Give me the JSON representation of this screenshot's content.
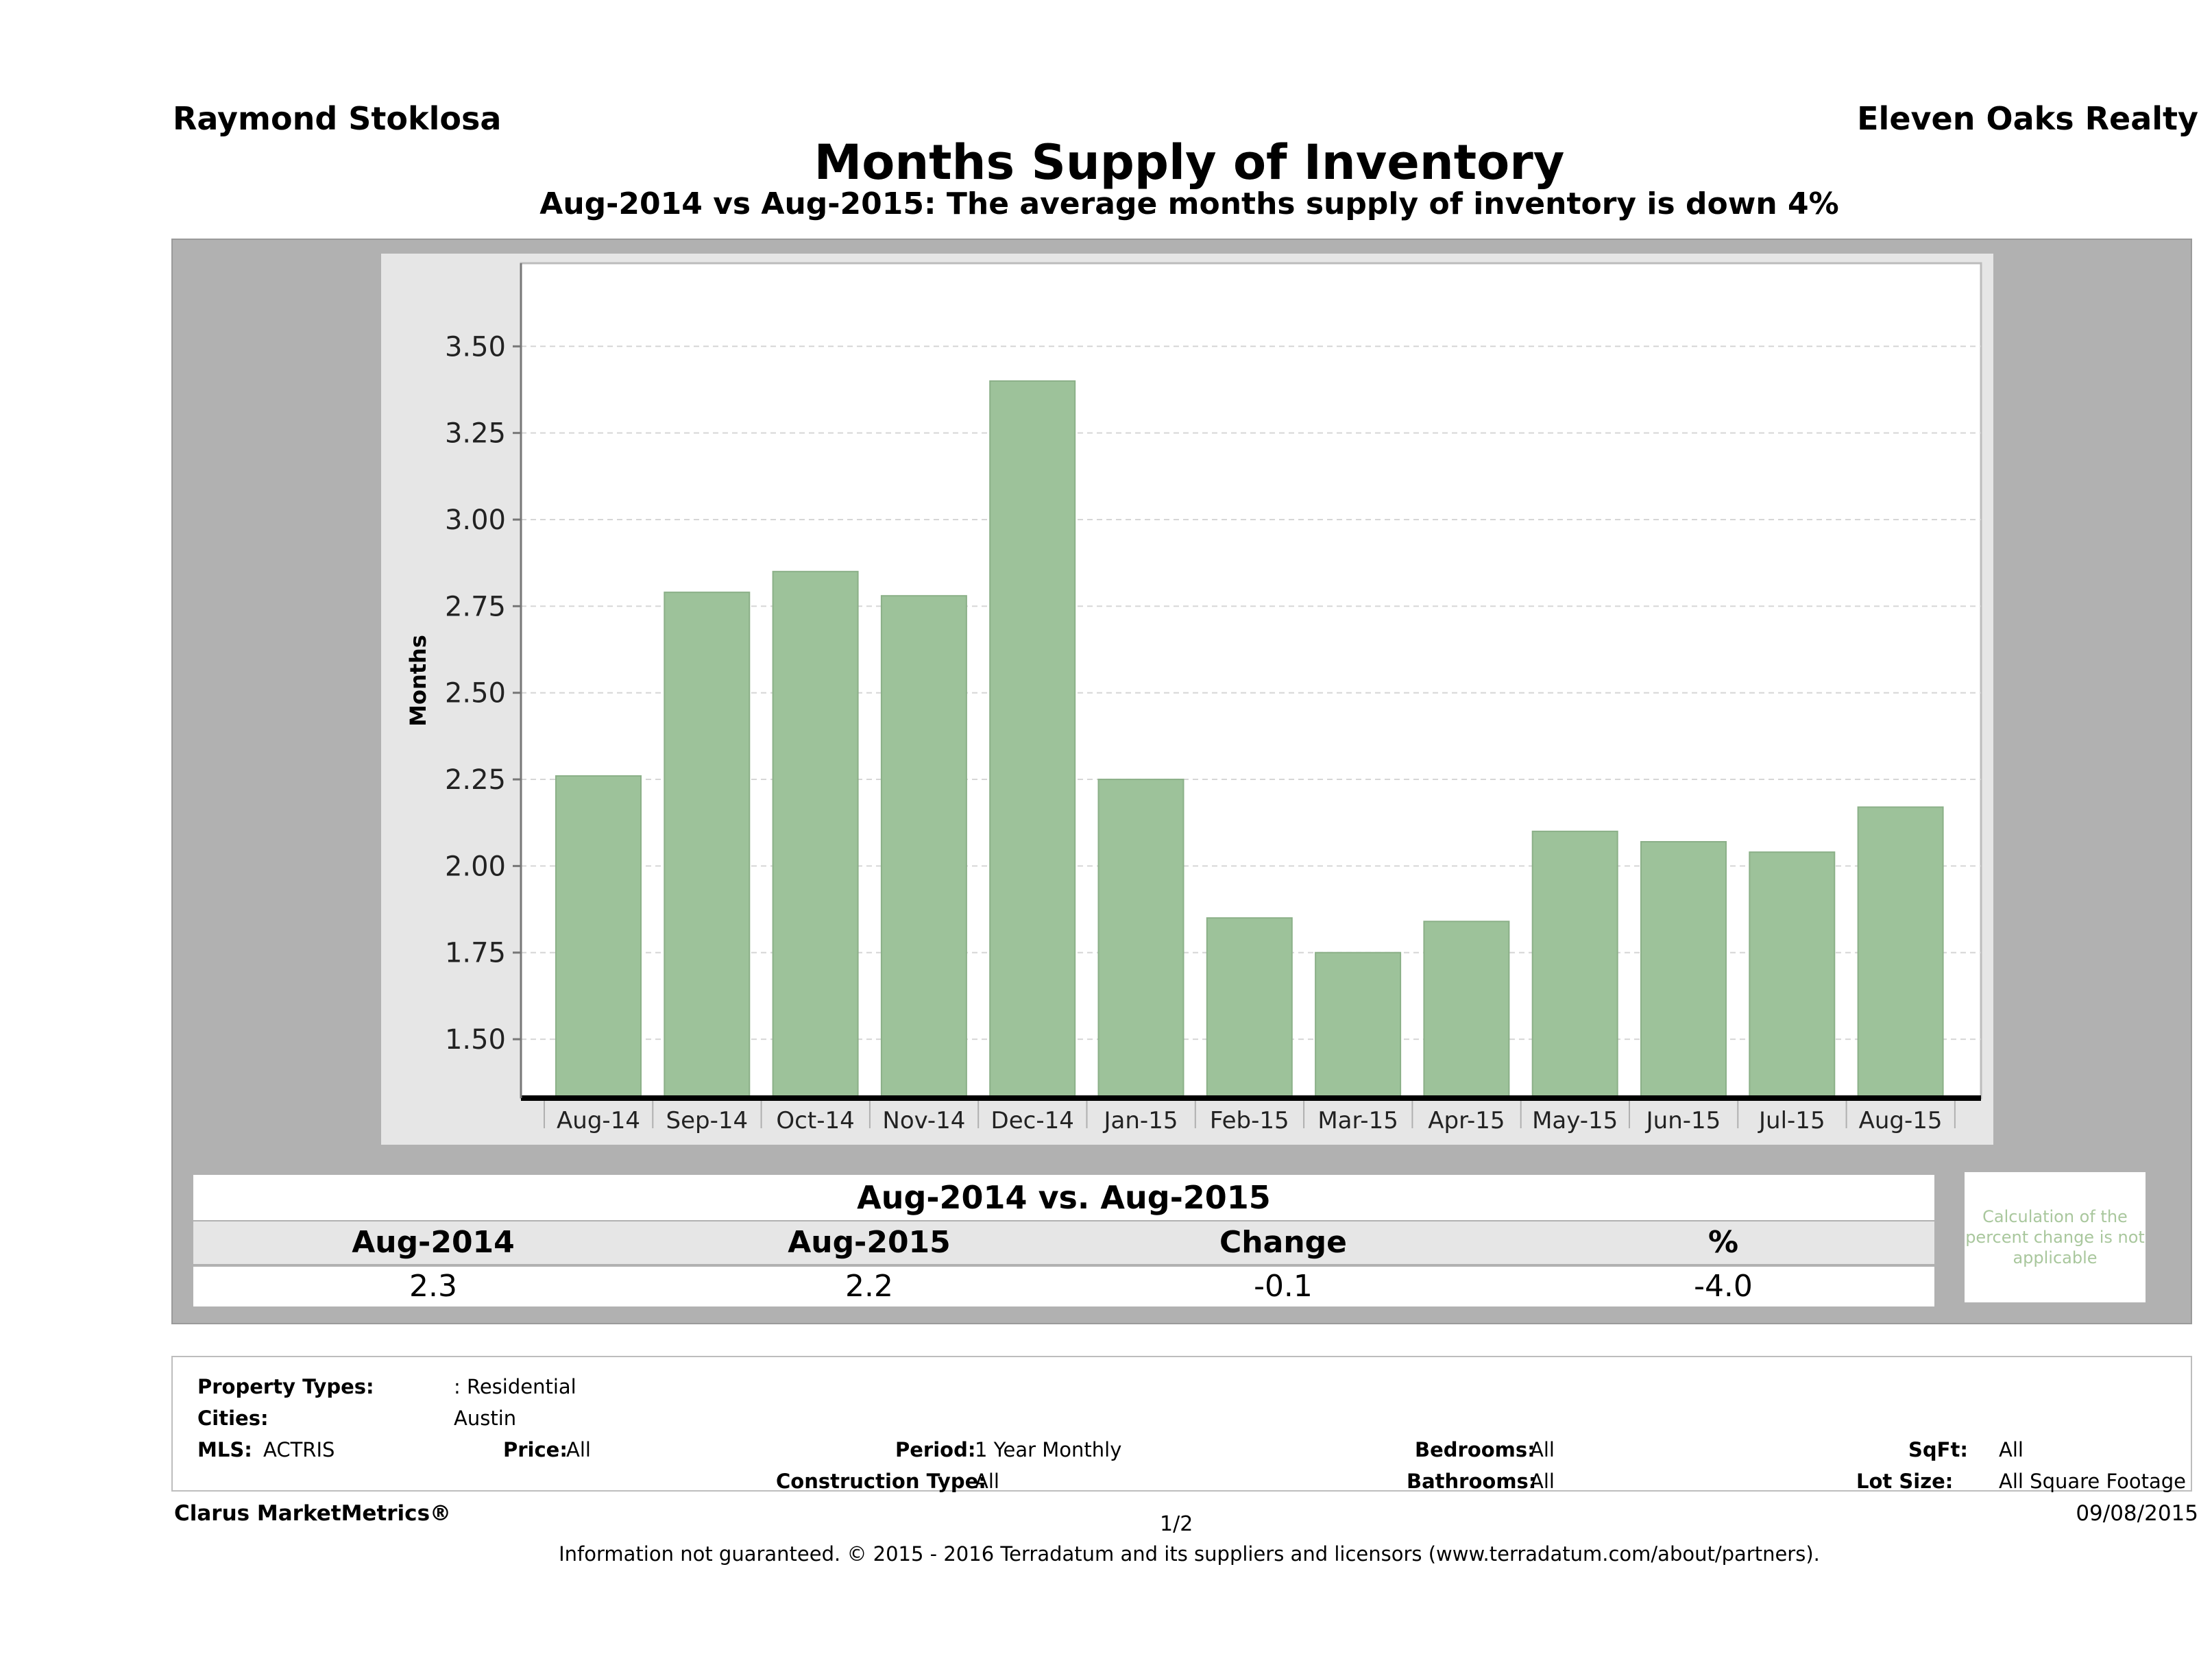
{
  "header": {
    "agent": "Raymond Stoklosa",
    "company": "Eleven Oaks Realty",
    "title": "Months Supply of Inventory",
    "subtitle": "Aug-2014 vs Aug-2015: The average months supply of inventory is down 4%"
  },
  "chart_data": {
    "type": "bar",
    "title": "Months Supply of Inventory",
    "ylabel": "Months",
    "xlabel": "",
    "categories": [
      "Aug-14",
      "Sep-14",
      "Oct-14",
      "Nov-14",
      "Dec-14",
      "Jan-15",
      "Feb-15",
      "Mar-15",
      "Apr-15",
      "May-15",
      "Jun-15",
      "Jul-15",
      "Aug-15"
    ],
    "values": [
      2.26,
      2.79,
      2.85,
      2.78,
      3.4,
      2.25,
      1.85,
      1.75,
      1.84,
      2.1,
      2.07,
      2.04,
      2.17
    ],
    "yticks": [
      "3.50",
      "3.25",
      "3.00",
      "2.75",
      "2.50",
      "2.25",
      "2.00",
      "1.75",
      "1.50"
    ],
    "ylim": [
      1.33,
      3.74
    ],
    "grid": true,
    "bar_color": "#9dc29a"
  },
  "summary": {
    "heading": "Aug-2014 vs. Aug-2015",
    "columns": [
      "Aug-2014",
      "Aug-2015",
      "Change",
      "%"
    ],
    "values": [
      "2.3",
      "2.2",
      "-0.1",
      "-4.0"
    ],
    "note": "Calculation of the percent change is not applicable"
  },
  "filters": {
    "property_types_label": "Property Types:",
    "property_types_value": ": Residential",
    "cities_label": "Cities:",
    "cities_value": "Austin",
    "mls_label": "MLS:",
    "mls_value": "ACTRIS",
    "price_label": "Price:",
    "price_value": "All",
    "period_label": "Period:",
    "period_value": "1 Year Monthly",
    "construction_label": "Construction Type:",
    "construction_value": "All",
    "bedrooms_label": "Bedrooms:",
    "bedrooms_value": "All",
    "bathrooms_label": "Bathrooms:",
    "bathrooms_value": "All",
    "sqft_label": "SqFt:",
    "sqft_value": "All",
    "lotsize_label": "Lot Size:",
    "lotsize_value": "All Square Footage"
  },
  "footer": {
    "brand": "Clarus MarketMetrics®",
    "page": "1/2",
    "date": "09/08/2015",
    "disclaimer": "Information not guaranteed. © 2015 - 2016 Terradatum and its suppliers and licensors (www.terradatum.com/about/partners)."
  }
}
